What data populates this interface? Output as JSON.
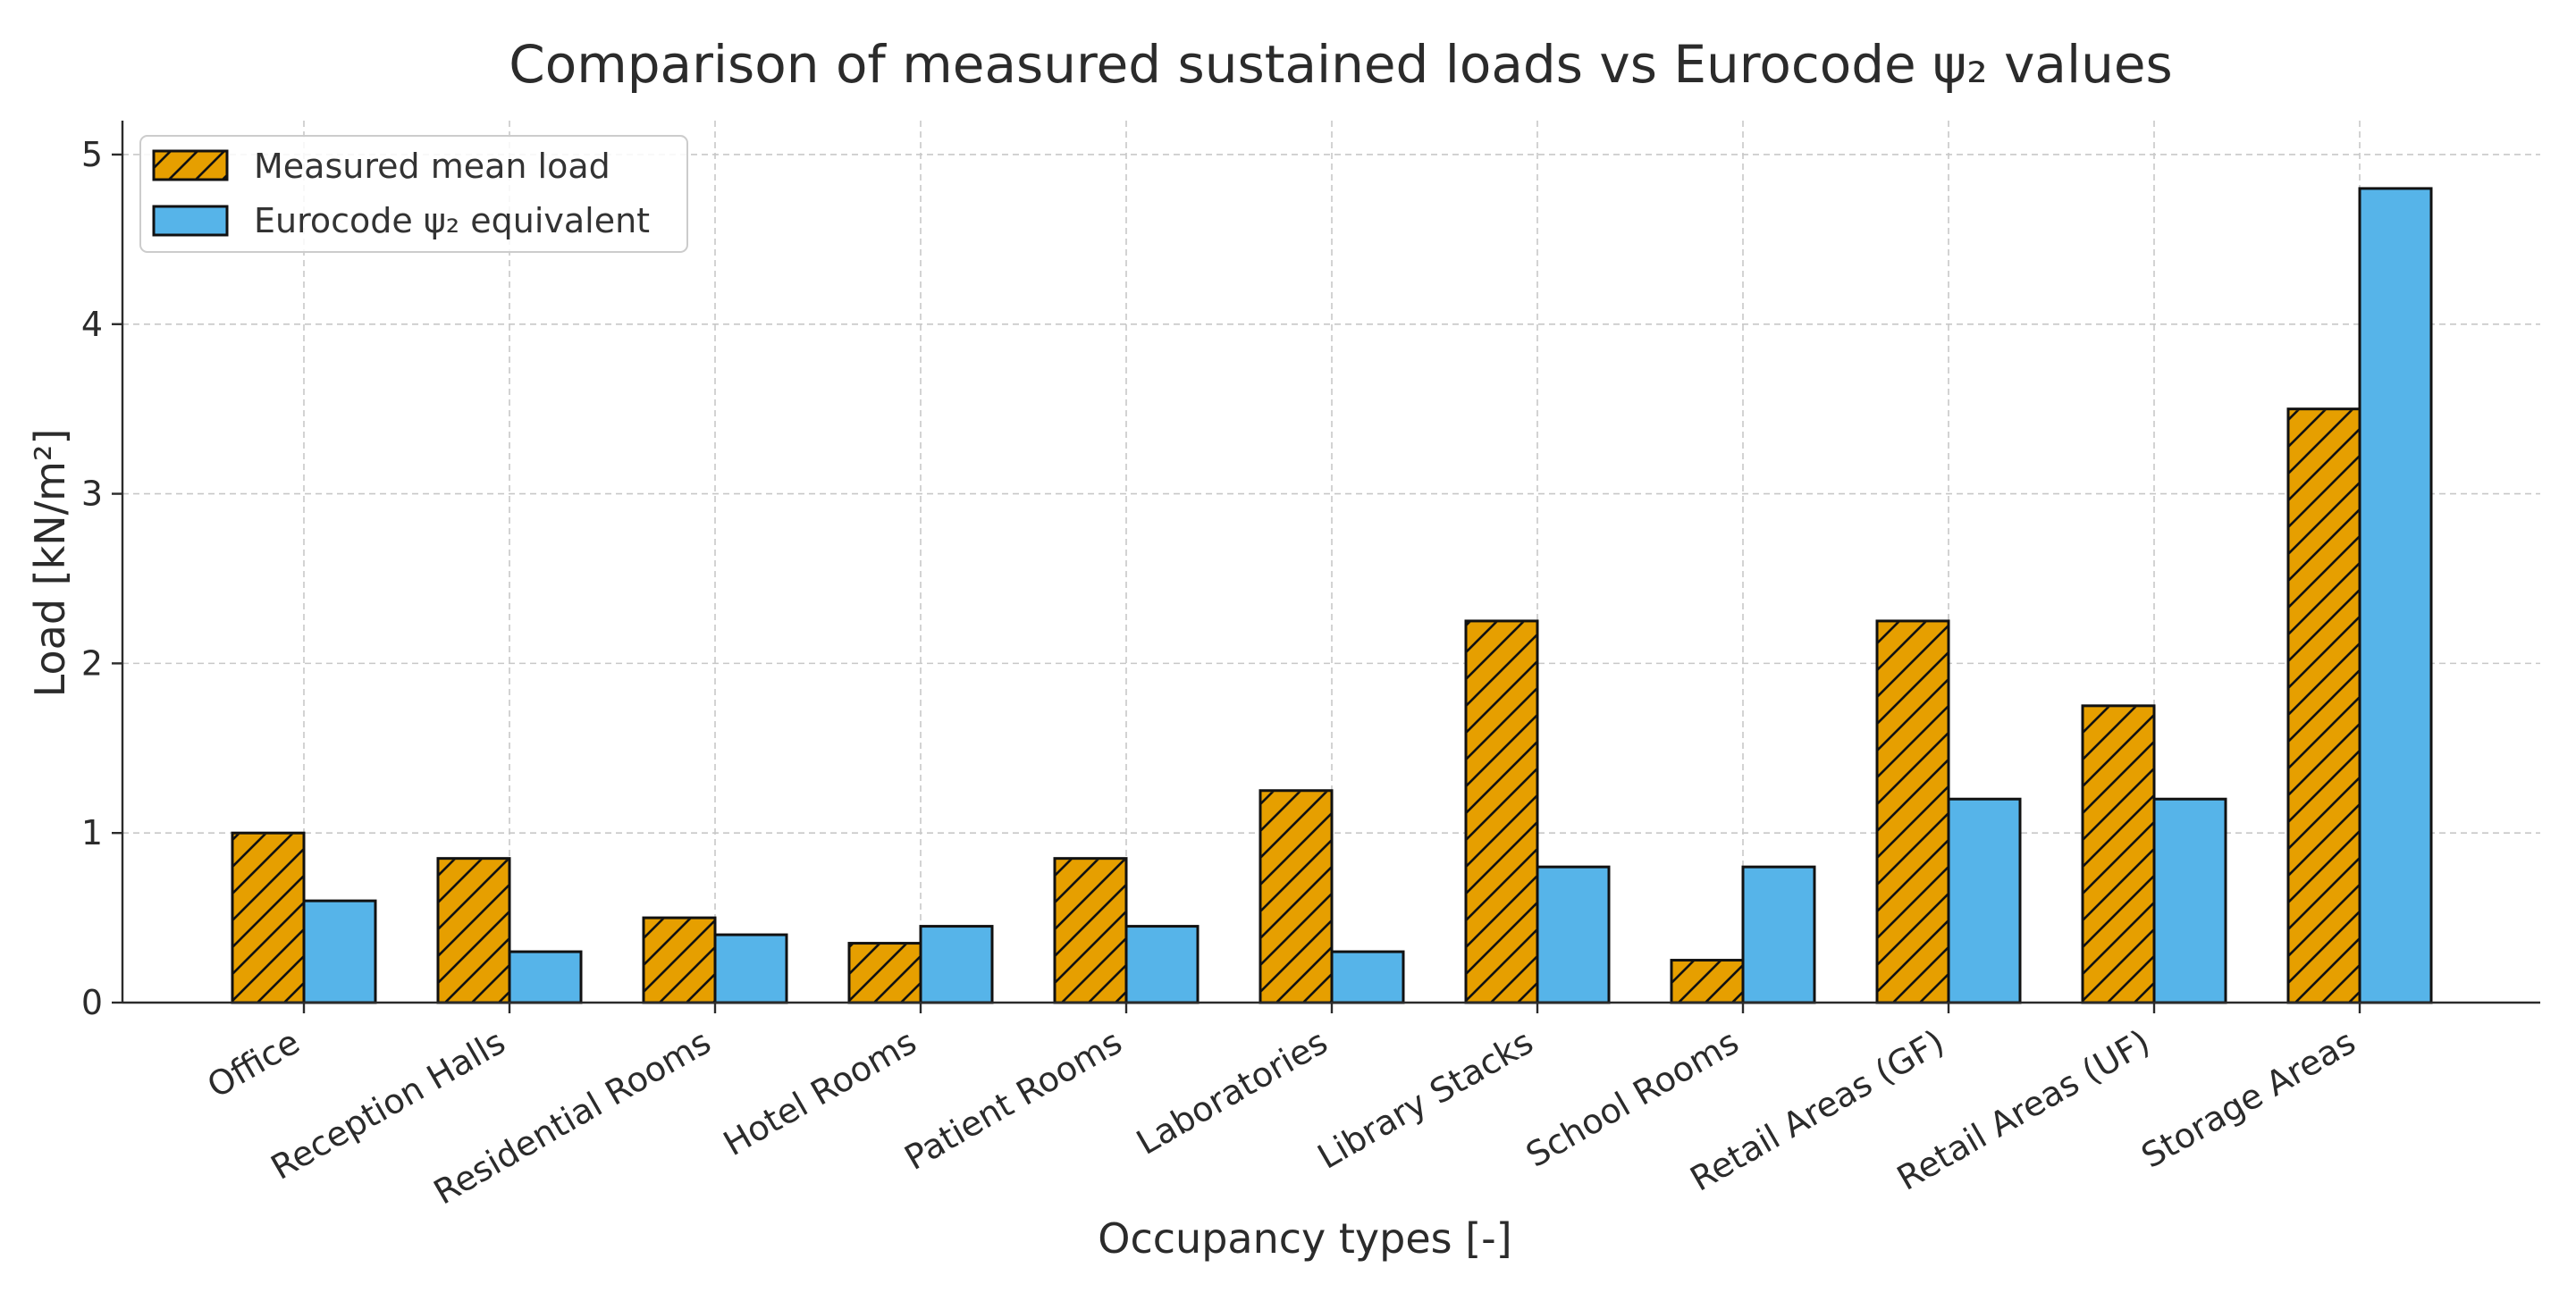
{
  "chart_data": {
    "type": "bar",
    "title": "Comparison of measured sustained loads vs Eurocode ψ₂ values",
    "xlabel": "Occupancy types [-]",
    "ylabel": "Load [kN/m²]",
    "ylim": [
      0,
      5.2
    ],
    "yticks": [
      0,
      1,
      2,
      3,
      4,
      5
    ],
    "grid": true,
    "legend_position": "top-left",
    "categories": [
      "Office",
      "Reception Halls",
      "Residential Rooms",
      "Hotel Rooms",
      "Patient Rooms",
      "Laboratories",
      "Library Stacks",
      "School Rooms",
      "Retail Areas (GF)",
      "Retail Areas (UF)",
      "Storage Areas"
    ],
    "series": [
      {
        "name": "Measured mean load",
        "color": "#E69F00",
        "hatch": "diagonal",
        "values": [
          1.0,
          0.85,
          0.5,
          0.35,
          0.85,
          1.25,
          2.25,
          0.25,
          2.25,
          1.75,
          3.5
        ]
      },
      {
        "name": "Eurocode ψ₂ equivalent",
        "color": "#56B4E9",
        "hatch": "none",
        "values": [
          0.6,
          0.3,
          0.4,
          0.45,
          0.45,
          0.3,
          0.8,
          0.8,
          1.2,
          1.2,
          4.8
        ]
      }
    ]
  }
}
